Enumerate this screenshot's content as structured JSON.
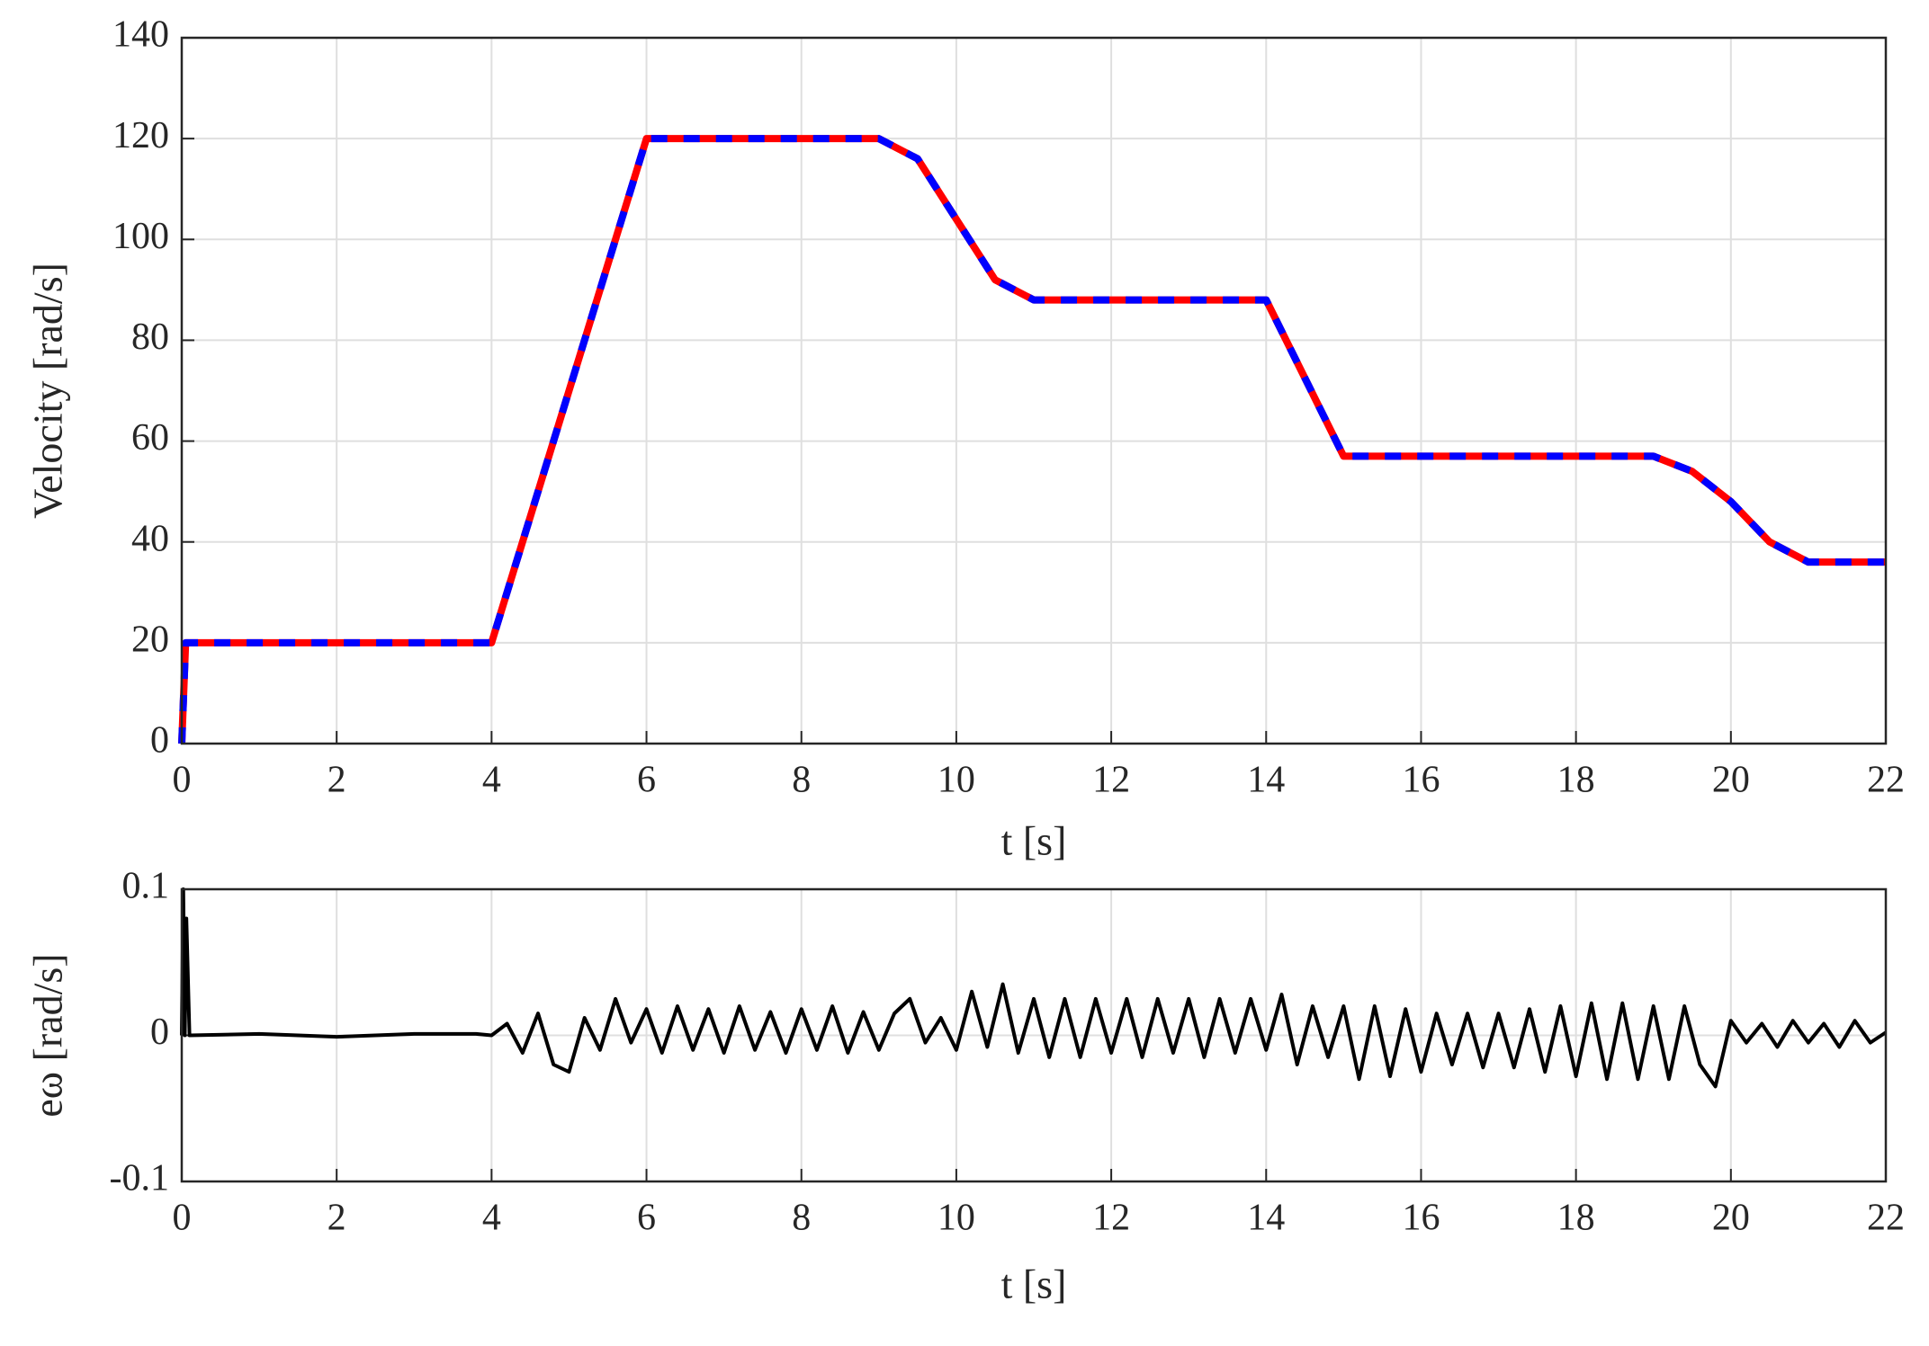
{
  "chart_data": [
    {
      "type": "line",
      "xlabel": "t [s]",
      "ylabel": "Velocity [rad/s]",
      "x": [
        0,
        0.05,
        4,
        6,
        9,
        9.5,
        10,
        10.5,
        11,
        14,
        15,
        19,
        19.5,
        20,
        20.5,
        21,
        22
      ],
      "series": [
        {
          "color": "#ff0000",
          "values": [
            0,
            20,
            20,
            120,
            120,
            116,
            104,
            92,
            88,
            88,
            57,
            57,
            54,
            48,
            40,
            36,
            36
          ]
        },
        {
          "color": "#0000ff",
          "dashed": true,
          "values": [
            0,
            20,
            20,
            120,
            120,
            116,
            104,
            92,
            88,
            88,
            57,
            57,
            54,
            48,
            40,
            36,
            36
          ]
        }
      ],
      "xlim": [
        0,
        22
      ],
      "xticks": [
        0,
        2,
        4,
        6,
        8,
        10,
        12,
        14,
        16,
        18,
        20,
        22
      ],
      "ylim": [
        0,
        140
      ],
      "yticks": [
        0,
        20,
        40,
        60,
        80,
        100,
        120,
        140
      ],
      "grid": true
    },
    {
      "type": "line",
      "xlabel": "t [s]",
      "ylabel": "eω [rad/s]",
      "x": [
        0,
        0.02,
        0.04,
        0.06,
        0.1,
        1,
        2,
        3,
        3.8,
        4.0,
        4.2,
        4.4,
        4.6,
        4.8,
        5.0,
        5.2,
        5.4,
        5.6,
        5.8,
        6.0,
        6.2,
        6.4,
        6.6,
        6.8,
        7.0,
        7.2,
        7.4,
        7.6,
        7.8,
        8.0,
        8.2,
        8.4,
        8.6,
        8.8,
        9.0,
        9.2,
        9.4,
        9.6,
        9.8,
        10.0,
        10.2,
        10.4,
        10.6,
        10.8,
        11.0,
        11.2,
        11.4,
        11.6,
        11.8,
        12.0,
        12.2,
        12.4,
        12.6,
        12.8,
        13.0,
        13.2,
        13.4,
        13.6,
        13.8,
        14.0,
        14.2,
        14.4,
        14.6,
        14.8,
        15.0,
        15.2,
        15.4,
        15.6,
        15.8,
        16.0,
        16.2,
        16.4,
        16.6,
        16.8,
        17.0,
        17.2,
        17.4,
        17.6,
        17.8,
        18.0,
        18.2,
        18.4,
        18.6,
        18.8,
        19.0,
        19.2,
        19.4,
        19.6,
        19.8,
        20.0,
        20.2,
        20.4,
        20.6,
        20.8,
        21.0,
        21.2,
        21.4,
        21.6,
        21.8,
        22.0
      ],
      "series": [
        {
          "color": "#000000",
          "values": [
            0,
            0.1,
            0,
            0.08,
            0,
            0.001,
            -0.001,
            0.001,
            0.001,
            0,
            0.008,
            -0.012,
            0.015,
            -0.02,
            -0.025,
            0.012,
            -0.01,
            0.025,
            -0.005,
            0.018,
            -0.012,
            0.02,
            -0.01,
            0.018,
            -0.012,
            0.02,
            -0.01,
            0.016,
            -0.012,
            0.018,
            -0.01,
            0.02,
            -0.012,
            0.016,
            -0.01,
            0.015,
            0.025,
            -0.005,
            0.012,
            -0.01,
            0.03,
            -0.008,
            0.035,
            -0.012,
            0.025,
            -0.015,
            0.025,
            -0.015,
            0.025,
            -0.012,
            0.025,
            -0.015,
            0.025,
            -0.012,
            0.025,
            -0.015,
            0.025,
            -0.012,
            0.025,
            -0.01,
            0.028,
            -0.02,
            0.02,
            -0.015,
            0.02,
            -0.03,
            0.02,
            -0.028,
            0.018,
            -0.025,
            0.015,
            -0.02,
            0.015,
            -0.022,
            0.015,
            -0.022,
            0.018,
            -0.025,
            0.02,
            -0.028,
            0.022,
            -0.03,
            0.022,
            -0.03,
            0.02,
            -0.03,
            0.02,
            -0.02,
            -0.035,
            0.01,
            -0.005,
            0.008,
            -0.008,
            0.01,
            -0.005,
            0.008,
            -0.008,
            0.01,
            -0.005,
            0.002
          ]
        }
      ],
      "xlim": [
        0,
        22
      ],
      "xticks": [
        0,
        2,
        4,
        6,
        8,
        10,
        12,
        14,
        16,
        18,
        20,
        22
      ],
      "ylim": [
        -0.1,
        0.1
      ],
      "yticks": [
        -0.1,
        0,
        0.1
      ],
      "grid": true
    }
  ]
}
